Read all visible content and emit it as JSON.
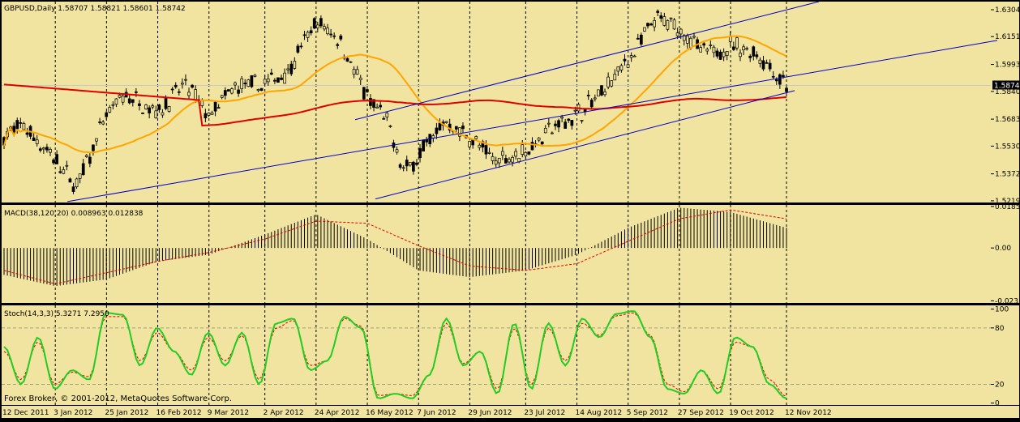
{
  "window": {
    "symbol_header": "GBPUSD,Daily  1.58707 1.58821 1.58601 1.58742",
    "macd_header": "MACD(38,120,20) 0.008963 0.012838",
    "stoch_header": "Stoch(14,3,3) 5.3271 7.2950",
    "footer": "Forex Broker, © 2001-2012, MetaQuotes Software Corp."
  },
  "colors": {
    "background": "#f0e4a0",
    "candles": "#000000",
    "ma_fast": "#ffa500",
    "ma_slow": "#e00000",
    "channel": "#0000cc",
    "macd_hist": "#000000",
    "macd_signal": "#e00000",
    "stoch_main": "#22cc22",
    "stoch_signal": "#e00000",
    "current_price_box": "#000000"
  },
  "chart_data": [
    {
      "type": "candlestick",
      "title": "GBPUSD,Daily",
      "ohlc_last": {
        "open": 1.58707,
        "high": 1.58821,
        "low": 1.58601,
        "close": 1.58742
      },
      "price_tick_labels": [
        "1.63040",
        "1.61515",
        "1.59935",
        "1.58742",
        "1.58405",
        "1.56830",
        "1.55300",
        "1.53725",
        "1.52195"
      ],
      "current_price": "1.58742",
      "ylim": [
        1.521,
        1.635
      ],
      "x_tick_labels": [
        "12 Dec 2011",
        "3 Jan 2012",
        "25 Jan 2012",
        "16 Feb 2012",
        "9 Mar 2012",
        "2 Apr 2012",
        "24 Apr 2012",
        "16 May 2012",
        "7 Jun 2012",
        "29 Jun 2012",
        "23 Jul 2012",
        "14 Aug 2012",
        "5 Sep 2012",
        "27 Sep 2012",
        "19 Oct 2012",
        "12 Nov 2012"
      ],
      "close_path": [
        {
          "date": "12 Dec 2011",
          "value": 1.558
        },
        {
          "date": "20 Dec 2011",
          "value": 1.565
        },
        {
          "date": "3 Jan 2012",
          "value": 1.545
        },
        {
          "date": "12 Jan 2012",
          "value": 1.53
        },
        {
          "date": "25 Jan 2012",
          "value": 1.57
        },
        {
          "date": "2 Feb 2012",
          "value": 1.582
        },
        {
          "date": "16 Feb 2012",
          "value": 1.573
        },
        {
          "date": "28 Feb 2012",
          "value": 1.588
        },
        {
          "date": "9 Mar 2012",
          "value": 1.57
        },
        {
          "date": "20 Mar 2012",
          "value": 1.586
        },
        {
          "date": "2 Apr 2012",
          "value": 1.588
        },
        {
          "date": "12 Apr 2012",
          "value": 1.596
        },
        {
          "date": "24 Apr 2012",
          "value": 1.623
        },
        {
          "date": "4 May 2012",
          "value": 1.614
        },
        {
          "date": "16 May 2012",
          "value": 1.58
        },
        {
          "date": "24 May 2012",
          "value": 1.568
        },
        {
          "date": "1 Jun 2012",
          "value": 1.538
        },
        {
          "date": "7 Jun 2012",
          "value": 1.548
        },
        {
          "date": "18 Jun 2012",
          "value": 1.567
        },
        {
          "date": "29 Jun 2012",
          "value": 1.558
        },
        {
          "date": "9 Jul 2012",
          "value": 1.545
        },
        {
          "date": "23 Jul 2012",
          "value": 1.55
        },
        {
          "date": "2 Aug 2012",
          "value": 1.562
        },
        {
          "date": "14 Aug 2012",
          "value": 1.571
        },
        {
          "date": "24 Aug 2012",
          "value": 1.582
        },
        {
          "date": "5 Sep 2012",
          "value": 1.602
        },
        {
          "date": "17 Sep 2012",
          "value": 1.625
        },
        {
          "date": "27 Sep 2012",
          "value": 1.62
        },
        {
          "date": "8 Oct 2012",
          "value": 1.605
        },
        {
          "date": "19 Oct 2012",
          "value": 1.61
        },
        {
          "date": "30 Oct 2012",
          "value": 1.606
        },
        {
          "date": "12 Nov 2012",
          "value": 1.5874
        }
      ]
    },
    {
      "type": "bar",
      "title": "MACD(38,120,20)",
      "macd_value": 0.008963,
      "signal_value": 0.012838,
      "tick_labels": [
        "0.01853",
        "0.00",
        "-0.02355"
      ],
      "ylim": [
        -0.0245,
        0.0192
      ],
      "histogram_path": [
        {
          "date": "12 Dec 2011",
          "value": -0.012
        },
        {
          "date": "3 Jan 2012",
          "value": -0.017
        },
        {
          "date": "25 Jan 2012",
          "value": -0.014
        },
        {
          "date": "16 Feb 2012",
          "value": -0.006
        },
        {
          "date": "9 Mar 2012",
          "value": -0.003
        },
        {
          "date": "2 Apr 2012",
          "value": 0.006
        },
        {
          "date": "24 Apr 2012",
          "value": 0.015
        },
        {
          "date": "16 May 2012",
          "value": 0.004
        },
        {
          "date": "7 Jun 2012",
          "value": -0.01
        },
        {
          "date": "29 Jun 2012",
          "value": -0.013
        },
        {
          "date": "23 Jul 2012",
          "value": -0.01
        },
        {
          "date": "14 Aug 2012",
          "value": -0.003
        },
        {
          "date": "5 Sep 2012",
          "value": 0.009
        },
        {
          "date": "27 Sep 2012",
          "value": 0.018
        },
        {
          "date": "19 Oct 2012",
          "value": 0.016
        },
        {
          "date": "12 Nov 2012",
          "value": 0.009
        }
      ],
      "signal_path": [
        {
          "date": "12 Dec 2011",
          "value": -0.01
        },
        {
          "date": "3 Jan 2012",
          "value": -0.016
        },
        {
          "date": "25 Jan 2012",
          "value": -0.011
        },
        {
          "date": "16 Feb 2012",
          "value": -0.006
        },
        {
          "date": "9 Mar 2012",
          "value": -0.002
        },
        {
          "date": "2 Apr 2012",
          "value": 0.004
        },
        {
          "date": "24 Apr 2012",
          "value": 0.012
        },
        {
          "date": "16 May 2012",
          "value": 0.011
        },
        {
          "date": "7 Jun 2012",
          "value": 0.001
        },
        {
          "date": "29 Jun 2012",
          "value": -0.008
        },
        {
          "date": "23 Jul 2012",
          "value": -0.01
        },
        {
          "date": "14 Aug 2012",
          "value": -0.007
        },
        {
          "date": "5 Sep 2012",
          "value": 0.003
        },
        {
          "date": "27 Sep 2012",
          "value": 0.013
        },
        {
          "date": "19 Oct 2012",
          "value": 0.017
        },
        {
          "date": "12 Nov 2012",
          "value": 0.013
        }
      ]
    },
    {
      "type": "line",
      "title": "Stoch(14,3,3)",
      "main_value": 5.3271,
      "signal_value": 7.295,
      "tick_labels": [
        "100",
        "80",
        "20",
        "0"
      ],
      "ylim": [
        -2,
        104
      ],
      "levels": [
        20,
        80
      ],
      "series": [
        {
          "name": "main",
          "values": [
            60,
            20,
            70,
            15,
            35,
            25,
            96,
            94,
            40,
            80,
            55,
            30,
            75,
            40,
            75,
            20,
            85,
            90,
            35,
            45,
            92,
            80,
            5,
            10,
            5,
            30,
            90,
            40,
            55,
            10,
            85,
            15,
            85,
            40,
            90,
            70,
            95,
            98,
            70,
            15,
            10,
            35,
            10,
            70,
            60,
            20,
            5
          ]
        },
        {
          "name": "signal",
          "values": [
            55,
            25,
            65,
            20,
            33,
            28,
            92,
            92,
            45,
            75,
            55,
            35,
            70,
            45,
            72,
            25,
            80,
            88,
            40,
            45,
            90,
            82,
            8,
            10,
            8,
            30,
            85,
            42,
            55,
            15,
            80,
            20,
            80,
            45,
            85,
            72,
            93,
            96,
            72,
            20,
            12,
            35,
            15,
            65,
            60,
            25,
            7
          ]
        }
      ]
    }
  ]
}
